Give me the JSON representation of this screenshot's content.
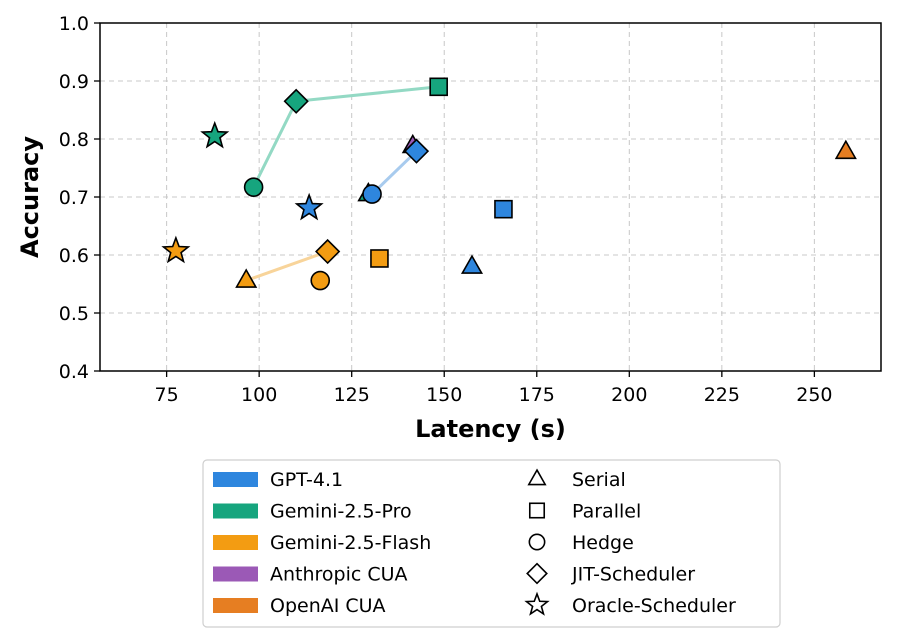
{
  "chart_data": {
    "type": "scatter",
    "xlabel": "Latency (s)",
    "ylabel": "Accuracy",
    "xlim": [
      57,
      268
    ],
    "ylim": [
      0.4,
      1.0
    ],
    "x_ticks": [
      75,
      100,
      125,
      150,
      175,
      200,
      225,
      250
    ],
    "y_ticks": [
      0.4,
      0.5,
      0.6,
      0.7,
      0.8,
      0.9,
      1.0
    ],
    "x_tick_labels": [
      "75",
      "100",
      "125",
      "150",
      "175",
      "200",
      "225",
      "250"
    ],
    "y_tick_labels": [
      "0.4",
      "0.5",
      "0.6",
      "0.7",
      "0.8",
      "0.9",
      "1.0"
    ],
    "grid": true,
    "legend_placement": "bottom-center",
    "models": [
      {
        "name": "GPT-4.1",
        "color": "#2e86de",
        "line_color": "#a8cbee"
      },
      {
        "name": "Gemini-2.5-Pro",
        "color": "#16a57e",
        "line_color": "#93d9c4"
      },
      {
        "name": "Gemini-2.5-Flash",
        "color": "#f39c12",
        "line_color": "#f8d49a"
      },
      {
        "name": "Anthropic CUA",
        "color": "#9b59b6",
        "line_color": "#d1b4df"
      },
      {
        "name": "OpenAI CUA",
        "color": "#e67e22",
        "line_color": "#f3c293"
      }
    ],
    "strategies": [
      {
        "name": "Serial",
        "marker": "triangle"
      },
      {
        "name": "Parallel",
        "marker": "square"
      },
      {
        "name": "Hedge",
        "marker": "circle"
      },
      {
        "name": "JIT-Scheduler",
        "marker": "diamond"
      },
      {
        "name": "Oracle-Scheduler",
        "marker": "star"
      }
    ],
    "lines": [
      {
        "model": "Gemini-2.5-Pro",
        "x": [
          98.5,
          110,
          148.5
        ],
        "y": [
          0.717,
          0.865,
          0.89
        ]
      },
      {
        "model": "GPT-4.1",
        "x": [
          130.5,
          142.5
        ],
        "y": [
          0.705,
          0.779
        ]
      },
      {
        "model": "Gemini-2.5-Flash",
        "x": [
          96.5,
          118.5
        ],
        "y": [
          0.556,
          0.606
        ]
      }
    ],
    "points": [
      {
        "model": "Gemini-2.5-Pro",
        "strategy": "Parallel",
        "x": 148.5,
        "y": 0.89
      },
      {
        "model": "Gemini-2.5-Pro",
        "strategy": "JIT-Scheduler",
        "x": 110,
        "y": 0.865
      },
      {
        "model": "Gemini-2.5-Pro",
        "strategy": "Oracle-Scheduler",
        "x": 88,
        "y": 0.805
      },
      {
        "model": "Gemini-2.5-Pro",
        "strategy": "Hedge",
        "x": 98.5,
        "y": 0.717
      },
      {
        "model": "Gemini-2.5-Pro",
        "strategy": "Serial",
        "x": 129.5,
        "y": 0.705
      },
      {
        "model": "GPT-4.1",
        "strategy": "Hedge",
        "x": 130.5,
        "y": 0.705
      },
      {
        "model": "Anthropic CUA",
        "strategy": "Serial",
        "x": 141.5,
        "y": 0.788
      },
      {
        "model": "GPT-4.1",
        "strategy": "JIT-Scheduler",
        "x": 142.5,
        "y": 0.779
      },
      {
        "model": "GPT-4.1",
        "strategy": "Oracle-Scheduler",
        "x": 113.5,
        "y": 0.681
      },
      {
        "model": "GPT-4.1",
        "strategy": "Parallel",
        "x": 166,
        "y": 0.679
      },
      {
        "model": "GPT-4.1",
        "strategy": "Serial",
        "x": 157.5,
        "y": 0.58
      },
      {
        "model": "OpenAI CUA",
        "strategy": "Serial",
        "x": 258.5,
        "y": 0.778
      },
      {
        "model": "Gemini-2.5-Flash",
        "strategy": "Oracle-Scheduler",
        "x": 77.5,
        "y": 0.607
      },
      {
        "model": "Gemini-2.5-Flash",
        "strategy": "JIT-Scheduler",
        "x": 118.5,
        "y": 0.606
      },
      {
        "model": "Gemini-2.5-Flash",
        "strategy": "Parallel",
        "x": 132.5,
        "y": 0.594
      },
      {
        "model": "Gemini-2.5-Flash",
        "strategy": "Hedge",
        "x": 116.5,
        "y": 0.556
      },
      {
        "model": "Gemini-2.5-Flash",
        "strategy": "Serial",
        "x": 96.5,
        "y": 0.556
      }
    ]
  }
}
